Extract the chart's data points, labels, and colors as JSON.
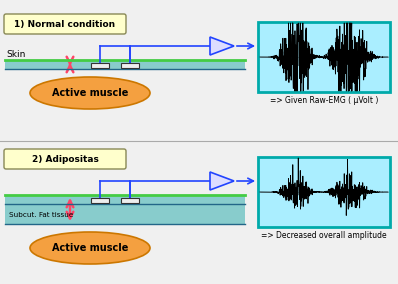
{
  "bg_color": "#f0f0f0",
  "title1": "1) Normal condition",
  "title2": "2) Adipositas",
  "label_skin": "Skin",
  "label_subcut": "Subcut. Fat tissue",
  "label_muscle": "Active muscle",
  "caption1": "=> Given Raw-EMG ( μVolt )",
  "caption2": "=> Decreased overall amplitude",
  "title_box_color": "#ffffcc",
  "title_border_color": "#888855",
  "skin_fill_color": "#88cccc",
  "skin_top_line_color": "#44cc44",
  "skin_bottom_line_color": "#226688",
  "fat_fill_color": "#88cccc",
  "muscle_fill_color": "#f4a040",
  "muscle_edge_color": "#cc7700",
  "emg_box_fill": "#aaeeff",
  "emg_box_border": "#00aaaa",
  "wire_color": "#2244ff",
  "amp_fill": "#ddddff",
  "amp_edge": "#2244ff",
  "double_arrow_color": "#ff4466",
  "electrode_fill": "#eeeeee",
  "electrode_edge": "#333333"
}
